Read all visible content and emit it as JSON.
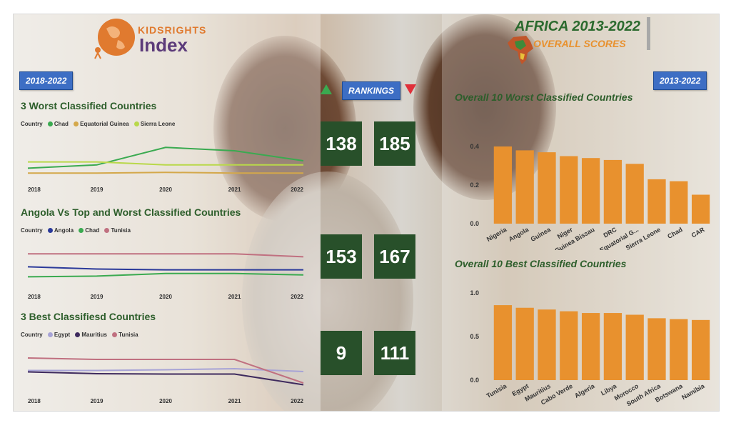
{
  "header": {
    "logo_top": "KIDSRIGHTS",
    "logo_bottom": "Index",
    "title": "AFRICA 2013-2022",
    "subtitle": "OVERALL SCORES"
  },
  "tags": {
    "left_period": "2018-2022",
    "rankings": "RANKINGS",
    "right_period": "2013-2022"
  },
  "colors": {
    "bar": "#e8912e",
    "rank_box": "#28502a",
    "title_green": "#2d5e2b",
    "tag_blue": "#3d6ec4"
  },
  "rankings": {
    "row1": [
      "138",
      "185"
    ],
    "row2": [
      "153",
      "167"
    ],
    "row3": [
      "9",
      "111"
    ]
  },
  "chart_data": [
    {
      "type": "line",
      "title": "3 Worst Classified Countries",
      "legend_label": "Country",
      "x": [
        "2018",
        "2019",
        "2020",
        "2021",
        "2022"
      ],
      "ylim": [
        0,
        200
      ],
      "series": [
        {
          "name": "Chad",
          "color": "#3aaa50",
          "values": [
            172,
            163,
            116,
            125,
            152
          ]
        },
        {
          "name": "Equatorial Guinea",
          "color": "#d4a84a",
          "values": [
            185,
            185,
            183,
            185,
            185
          ]
        },
        {
          "name": "Sierra Leone",
          "color": "#b9d84a",
          "values": [
            155,
            155,
            163,
            163,
            163
          ]
        }
      ]
    },
    {
      "type": "line",
      "title": "Angola Vs Top and Worst Classified Countries",
      "legend_label": "Country",
      "x": [
        "2018",
        "2019",
        "2020",
        "2021",
        "2022"
      ],
      "ylim": [
        0,
        200
      ],
      "series": [
        {
          "name": "Angola",
          "color": "#2b3a9a",
          "values": [
            145,
            151,
            153,
            153,
            153
          ]
        },
        {
          "name": "Chad",
          "color": "#3aaa50",
          "values": [
            172,
            170,
            163,
            163,
            167
          ]
        },
        {
          "name": "Tunisia",
          "color": "#c07080",
          "values": [
            110,
            110,
            110,
            110,
            118
          ]
        }
      ]
    },
    {
      "type": "line",
      "title": "3 Best Classifiesd Countries",
      "legend_label": "Country",
      "x": [
        "2018",
        "2019",
        "2020",
        "2021",
        "2022"
      ],
      "ylim": [
        0,
        200
      ],
      "series": [
        {
          "name": "Egypt",
          "color": "#a7a3d6",
          "values": [
            145,
            145,
            143,
            140,
            148
          ]
        },
        {
          "name": "Mauritius",
          "color": "#3e2a5e",
          "values": [
            149,
            154,
            155,
            155,
            185
          ]
        },
        {
          "name": "Tunisia",
          "color": "#c07080",
          "values": [
            110,
            114,
            114,
            114,
            180
          ]
        }
      ]
    },
    {
      "type": "bar",
      "title": "Overall 10 Worst Classified Countries",
      "categories": [
        "Nigeria",
        "Angola",
        "Guinea",
        "Niger",
        "Guinea Bissau",
        "DRC",
        "Equatorial G...",
        "Sierra Leone",
        "Chad",
        "CAR"
      ],
      "values": [
        0.4,
        0.38,
        0.37,
        0.35,
        0.34,
        0.33,
        0.31,
        0.23,
        0.22,
        0.15
      ],
      "yticks": [
        "0.0",
        "0.2",
        "0.4"
      ],
      "ylim": [
        0,
        0.4
      ]
    },
    {
      "type": "bar",
      "title": "Overall 10 Best Classified Countries",
      "categories": [
        "Tunisia",
        "Egypt",
        "Mauritius",
        "Cabo Verde",
        "Algeria",
        "Libya",
        "Morocco",
        "South Africa",
        "Botswana",
        "Namibia"
      ],
      "values": [
        0.86,
        0.83,
        0.81,
        0.79,
        0.77,
        0.77,
        0.75,
        0.71,
        0.7,
        0.69
      ],
      "yticks": [
        "0.0",
        "0.5",
        "1.0"
      ],
      "ylim": [
        0,
        1.0
      ]
    }
  ]
}
